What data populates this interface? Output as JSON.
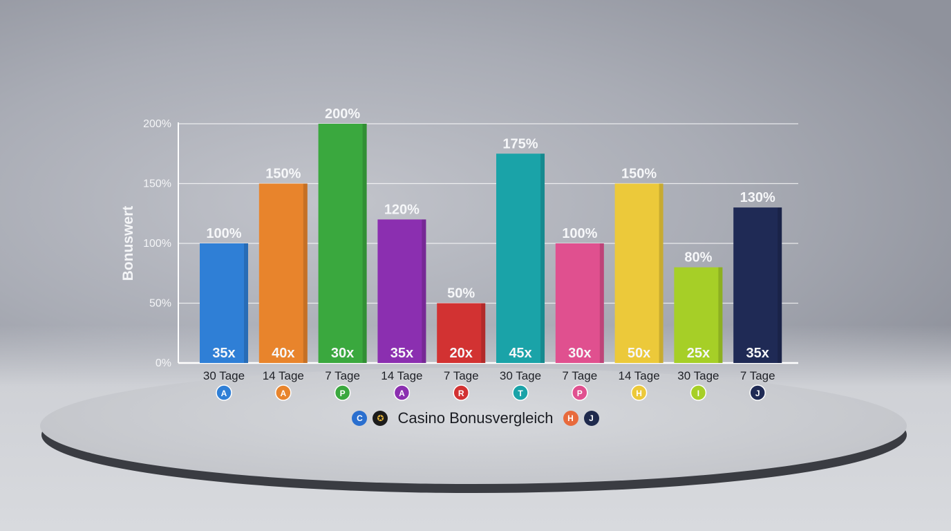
{
  "chart_data": {
    "type": "bar",
    "ylabel": "Bonuswert",
    "ylim": [
      0,
      200
    ],
    "yticks": [
      "0%",
      "50%",
      "100%",
      "150%",
      "200%"
    ],
    "grid": true,
    "categories": [
      "30 Tage",
      "14 Tage",
      "7 Tage",
      "14 Tage",
      "7 Tage",
      "30 Tage",
      "7 Tage",
      "14 Tage",
      "30 Tage",
      "7 Tage"
    ],
    "values": [
      100,
      150,
      200,
      120,
      50,
      175,
      100,
      150,
      80,
      130
    ],
    "value_labels": [
      "100%",
      "150%",
      "200%",
      "120%",
      "50%",
      "175%",
      "100%",
      "150%",
      "80%",
      "130%"
    ],
    "wagering_labels": [
      "35x",
      "40x",
      "30x",
      "35x",
      "20x",
      "45x",
      "30x",
      "50x",
      "25x",
      "35x"
    ],
    "badges": [
      "A",
      "A",
      "P",
      "A",
      "R",
      "T",
      "P",
      "H",
      "I",
      "J"
    ],
    "colors": [
      "#2f7fd6",
      "#e8842c",
      "#3aa83e",
      "#8b2fb0",
      "#d23232",
      "#1aa3a8",
      "#e0508f",
      "#ecc93a",
      "#a6cf27",
      "#1f2a55"
    ]
  },
  "footer": {
    "title": "Casino Bonusvergleich",
    "badge_h": "H",
    "badge_j": "J"
  }
}
